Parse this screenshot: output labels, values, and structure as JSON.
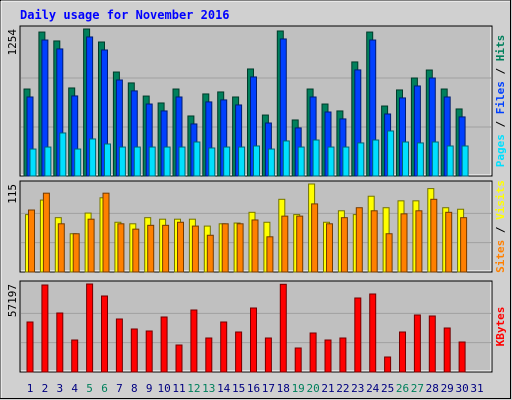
{
  "chart_data": [
    {
      "type": "bar",
      "title": "Daily usage for November 2016",
      "ylim": [
        0,
        1254
      ],
      "yticks": [
        1254
      ],
      "grid_divisions": 3,
      "legend_separator": " / ",
      "series": [
        {
          "name": "Hits",
          "color": "#00805c",
          "values": [
            742,
            1228,
            1152,
            751,
            1254,
            1143,
            887,
            794,
            682,
            623,
            742,
            512,
            700,
            717,
            674,
            913,
            520,
            1237,
            478,
            742,
            614,
            555,
            973,
            1228,
            597,
            734,
            836,
            904,
            742,
            572,
            null
          ]
        },
        {
          "name": "Files",
          "color": "#0040ff",
          "values": [
            674,
            1160,
            1084,
            683,
            1186,
            1075,
            819,
            726,
            614,
            555,
            674,
            444,
            632,
            649,
            606,
            845,
            452,
            1169,
            410,
            674,
            546,
            487,
            905,
            1160,
            529,
            666,
            768,
            836,
            674,
            504,
            null
          ]
        },
        {
          "name": "Pages",
          "color": "#00e0ff",
          "values": [
            230,
            247,
            367,
            230,
            316,
            273,
            247,
            247,
            247,
            247,
            247,
            290,
            239,
            247,
            247,
            256,
            230,
            299,
            247,
            307,
            247,
            247,
            282,
            307,
            384,
            290,
            282,
            290,
            256,
            256,
            null
          ]
        }
      ]
    },
    {
      "type": "bar",
      "ylim": [
        0,
        115
      ],
      "yticks": [
        115
      ],
      "grid_divisions": 3,
      "legend_separator": " / ",
      "series": [
        {
          "name": "Visits",
          "color": "#ffff00",
          "values": [
            75,
            94,
            71,
            50,
            77,
            97,
            65,
            63,
            71,
            69,
            69,
            69,
            60,
            63,
            64,
            78,
            65,
            95,
            75,
            115,
            65,
            80,
            75,
            99,
            84,
            93,
            93,
            109,
            84,
            82,
            null
          ]
        },
        {
          "name": "Sites",
          "color": "#ff8000",
          "values": [
            81,
            103,
            63,
            50,
            69,
            103,
            63,
            56,
            61,
            61,
            65,
            60,
            48,
            63,
            63,
            68,
            46,
            73,
            73,
            89,
            63,
            71,
            84,
            80,
            50,
            76,
            80,
            95,
            78,
            71,
            null
          ]
        }
      ]
    },
    {
      "type": "bar",
      "ylim": [
        0,
        57197
      ],
      "yticks": [
        57197
      ],
      "grid_divisions": 3,
      "legend_separator": " / ",
      "categories": [
        "1",
        "2",
        "3",
        "4",
        "5",
        "6",
        "7",
        "8",
        "9",
        "10",
        "11",
        "12",
        "13",
        "14",
        "15",
        "16",
        "17",
        "18",
        "19",
        "20",
        "21",
        "22",
        "23",
        "24",
        "25",
        "26",
        "27",
        "28",
        "29",
        "30",
        "31"
      ],
      "label_colors": [
        "#000080",
        "#000080",
        "#000080",
        "#000080",
        "#00805c",
        "#00805c",
        "#000080",
        "#000080",
        "#000080",
        "#000080",
        "#000080",
        "#00805c",
        "#00805c",
        "#000080",
        "#000080",
        "#000080",
        "#000080",
        "#000080",
        "#00805c",
        "#00805c",
        "#000080",
        "#000080",
        "#000080",
        "#000080",
        "#000080",
        "#00805c",
        "#00805c",
        "#000080",
        "#000080",
        "#000080",
        "#000080"
      ],
      "series": [
        {
          "name": "KBytes",
          "color": "#ff0000",
          "values": [
            32500,
            56550,
            38350,
            20800,
            57197,
            49400,
            34450,
            27950,
            26650,
            35750,
            17550,
            40300,
            22100,
            32500,
            26000,
            41600,
            22100,
            57000,
            15600,
            25350,
            20800,
            22100,
            48100,
            50700,
            9750,
            26000,
            37050,
            36400,
            28600,
            19500,
            null
          ]
        }
      ]
    }
  ]
}
